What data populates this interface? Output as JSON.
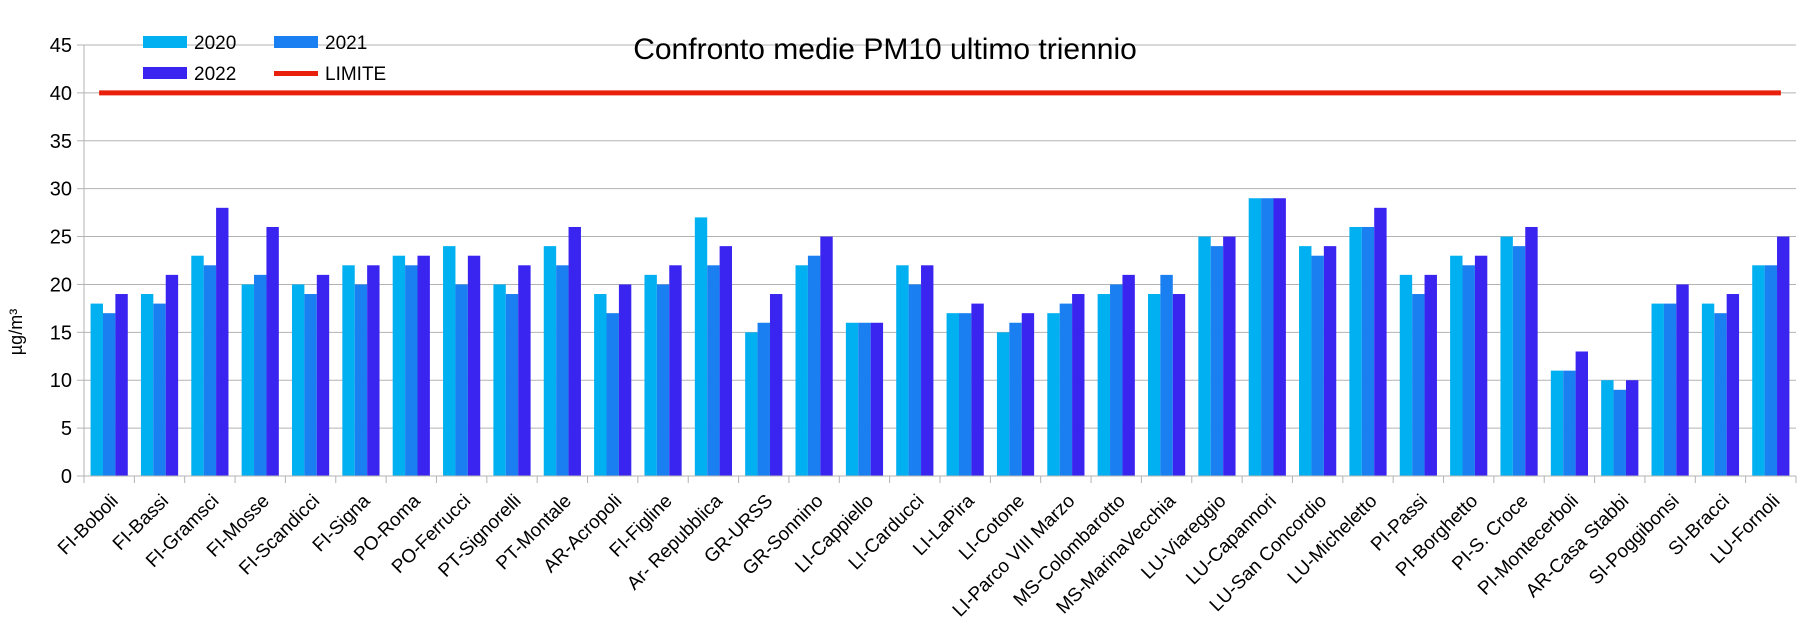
{
  "chart_data": {
    "type": "bar",
    "title": "Confronto medie PM10 ultimo triennio",
    "xlabel": "",
    "ylabel": "µg/m³",
    "ylim": [
      0,
      45
    ],
    "yticks": [
      0,
      5,
      10,
      15,
      20,
      25,
      30,
      35,
      40,
      45
    ],
    "grid": true,
    "legend_position": "top-left",
    "categories": [
      "FI-Boboli",
      "FI-Bassi",
      "FI-Gramsci",
      "FI-Mosse",
      "FI-Scandicci",
      "FI-Signa",
      "PO-Roma",
      "PO-Ferrucci",
      "PT-Signorelli",
      "PT-Montale",
      "AR-Acropoli",
      "FI-Figline",
      "Ar- Repubblica",
      "GR-URSS",
      "GR-Sonnino",
      "LI-Cappiello",
      "LI-Carducci",
      "LI-LaPira",
      "LI-Cotone",
      "LI-Parco VIII Marzo",
      "MS-Colombarotto",
      "MS-MarinaVecchia",
      "LU-Viareggio",
      "LU-Capannori",
      "LU-San Concordio",
      "LU-Micheletto",
      "PI-Passi",
      "PI-Borghetto",
      "PI-S. Croce",
      "PI-Montecerboli",
      "AR-Casa Stabbi",
      "SI-Poggibonsi",
      "SI-Bracci",
      "LU-Fornoli"
    ],
    "series": [
      {
        "name": "2020",
        "color": "#00b0f0",
        "values": [
          18,
          19,
          23,
          20,
          20,
          22,
          23,
          24,
          20,
          24,
          19,
          21,
          27,
          15,
          22,
          16,
          22,
          17,
          15,
          17,
          19,
          19,
          25,
          29,
          24,
          26,
          21,
          23,
          25,
          11,
          10,
          18,
          18,
          22
        ]
      },
      {
        "name": "2021",
        "color": "#1a7ff0",
        "values": [
          17,
          18,
          22,
          21,
          19,
          20,
          22,
          20,
          19,
          22,
          17,
          20,
          22,
          16,
          23,
          16,
          20,
          17,
          16,
          18,
          20,
          21,
          24,
          29,
          23,
          26,
          19,
          22,
          24,
          11,
          9,
          18,
          17,
          22
        ]
      },
      {
        "name": "2022",
        "color": "#3a25f0",
        "values": [
          19,
          21,
          28,
          26,
          21,
          22,
          23,
          23,
          22,
          26,
          20,
          22,
          24,
          19,
          25,
          16,
          22,
          18,
          17,
          19,
          21,
          19,
          25,
          29,
          24,
          28,
          21,
          23,
          26,
          13,
          10,
          20,
          19,
          25
        ]
      }
    ],
    "limit": {
      "name": "LIMITE",
      "value": 40,
      "color": "#e8200c"
    }
  }
}
